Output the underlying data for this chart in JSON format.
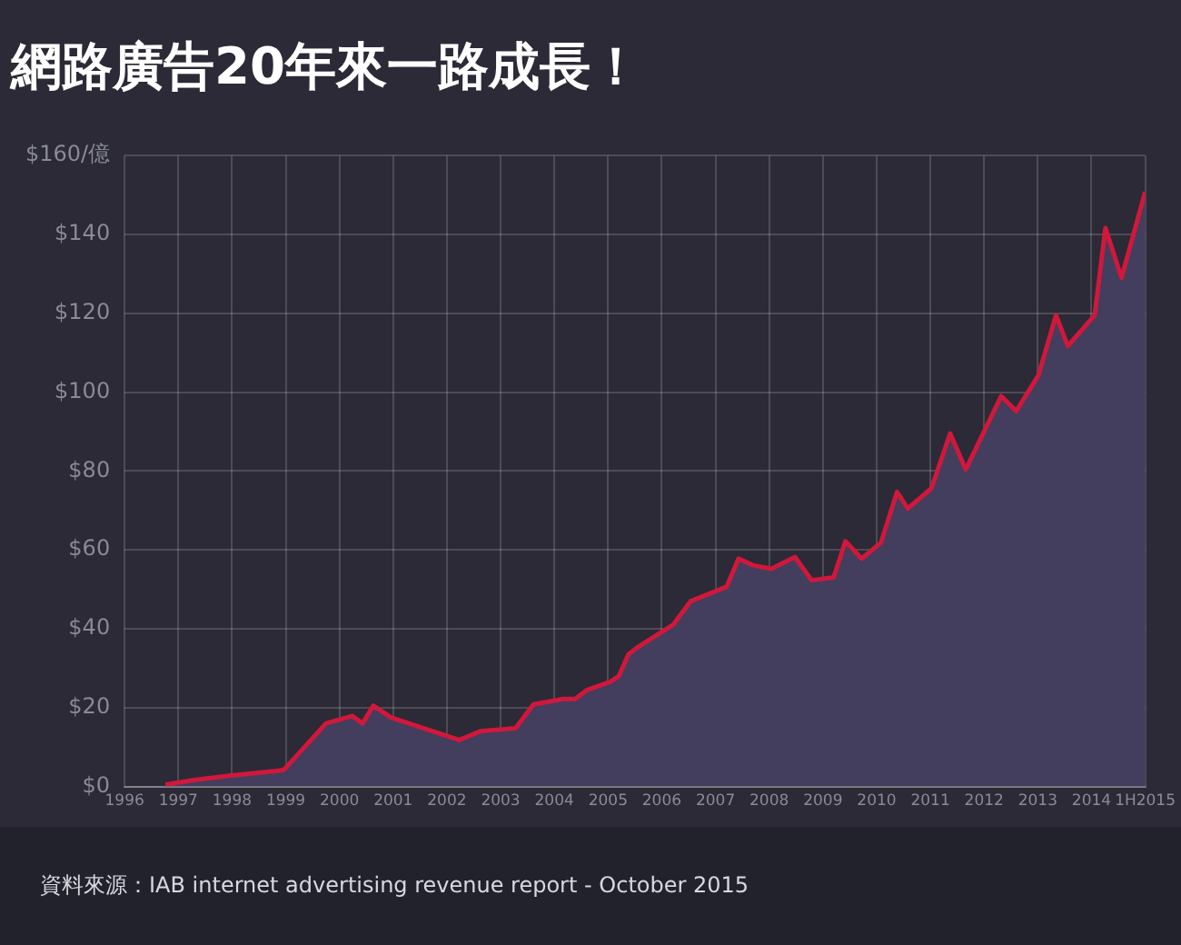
{
  "chart_data": {
    "type": "area",
    "title": "網路廣告20年來一路成長！",
    "x": [
      1996.76,
      1997.32,
      1997.98,
      1998.86,
      1998.97,
      1999.75,
      2000.24,
      2000.43,
      2000.63,
      2000.96,
      2002.23,
      2002.62,
      2003.28,
      2003.61,
      2004.17,
      2004.39,
      2004.61,
      2005.05,
      2005.2,
      2005.38,
      2005.55,
      2006.21,
      2006.54,
      2007.21,
      2007.43,
      2007.7,
      2008.04,
      2008.48,
      2008.79,
      2009.2,
      2009.42,
      2009.72,
      2010.08,
      2010.38,
      2010.58,
      2011.02,
      2011.37,
      2011.66,
      2012.32,
      2012.6,
      2013.01,
      2013.34,
      2013.56,
      2014.06,
      2014.26,
      2014.56,
      2015
    ],
    "series": [
      {
        "color": "#d0183c",
        "values": [
          0.5,
          1.7,
          2.8,
          4,
          4.3,
          16,
          17.9,
          16,
          20.5,
          17.5,
          11.8,
          14,
          14.8,
          20.8,
          22.2,
          22.2,
          24.5,
          26.6,
          28,
          33.5,
          35.3,
          41,
          47,
          50.7,
          57.8,
          56.1,
          55.2,
          58.2,
          52.3,
          53,
          62.2,
          57.8,
          61.8,
          74.7,
          70.5,
          75.6,
          89.5,
          80.4,
          99,
          95.2,
          104.2,
          119.5,
          111.7,
          119.5,
          141.6,
          129,
          150.8
        ]
      }
    ],
    "xlim": [
      1996,
      2015
    ],
    "xticks": [
      1996,
      1997,
      1998,
      1999,
      2000,
      2001,
      2002,
      2003,
      2004,
      2005,
      2006,
      2007,
      2008,
      2009,
      2010,
      2011,
      2012,
      2013,
      2014,
      {
        "value": 2015,
        "label": "1H2015"
      }
    ],
    "ylim": [
      0,
      160
    ],
    "yticks": [
      {
        "value": 0,
        "label": "$0"
      },
      {
        "value": 20,
        "label": "$20"
      },
      {
        "value": 40,
        "label": "$40"
      },
      {
        "value": 60,
        "label": "$60"
      },
      {
        "value": 80,
        "label": "$80"
      },
      {
        "value": 100,
        "label": "$100"
      },
      {
        "value": 120,
        "label": "$120"
      },
      {
        "value": 140,
        "label": "$140"
      },
      {
        "value": 160,
        "label": "$160/億"
      }
    ],
    "grid": true,
    "annotations": [
      "資料來源：IAB internet advertising revenue report - October 2015"
    ]
  }
}
